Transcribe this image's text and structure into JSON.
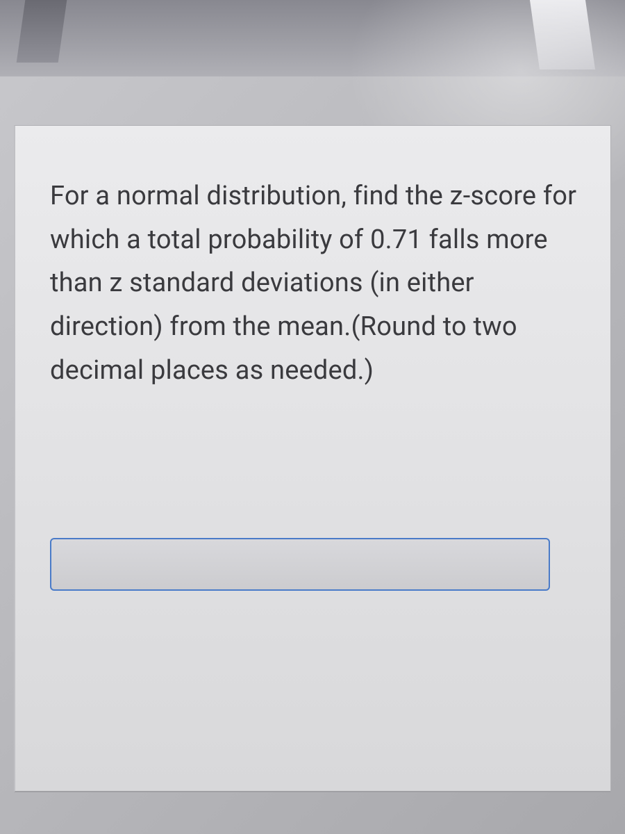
{
  "question": {
    "text": "For a normal distribution, find the z-score for which a total probability of 0.71 falls more than z standard deviations (in either direction) from the mean.(Round to two decimal places as needed.)",
    "text_color": "#3a3a3e",
    "font_size": 38
  },
  "answer_input": {
    "value": "",
    "placeholder": "",
    "border_color": "#4a7bc8",
    "background_color": "#d4d4d8"
  },
  "card": {
    "background_color": "#e4e4e6",
    "border_color": "#b0b0b4"
  },
  "page": {
    "background_color": "#bcbcc0"
  }
}
